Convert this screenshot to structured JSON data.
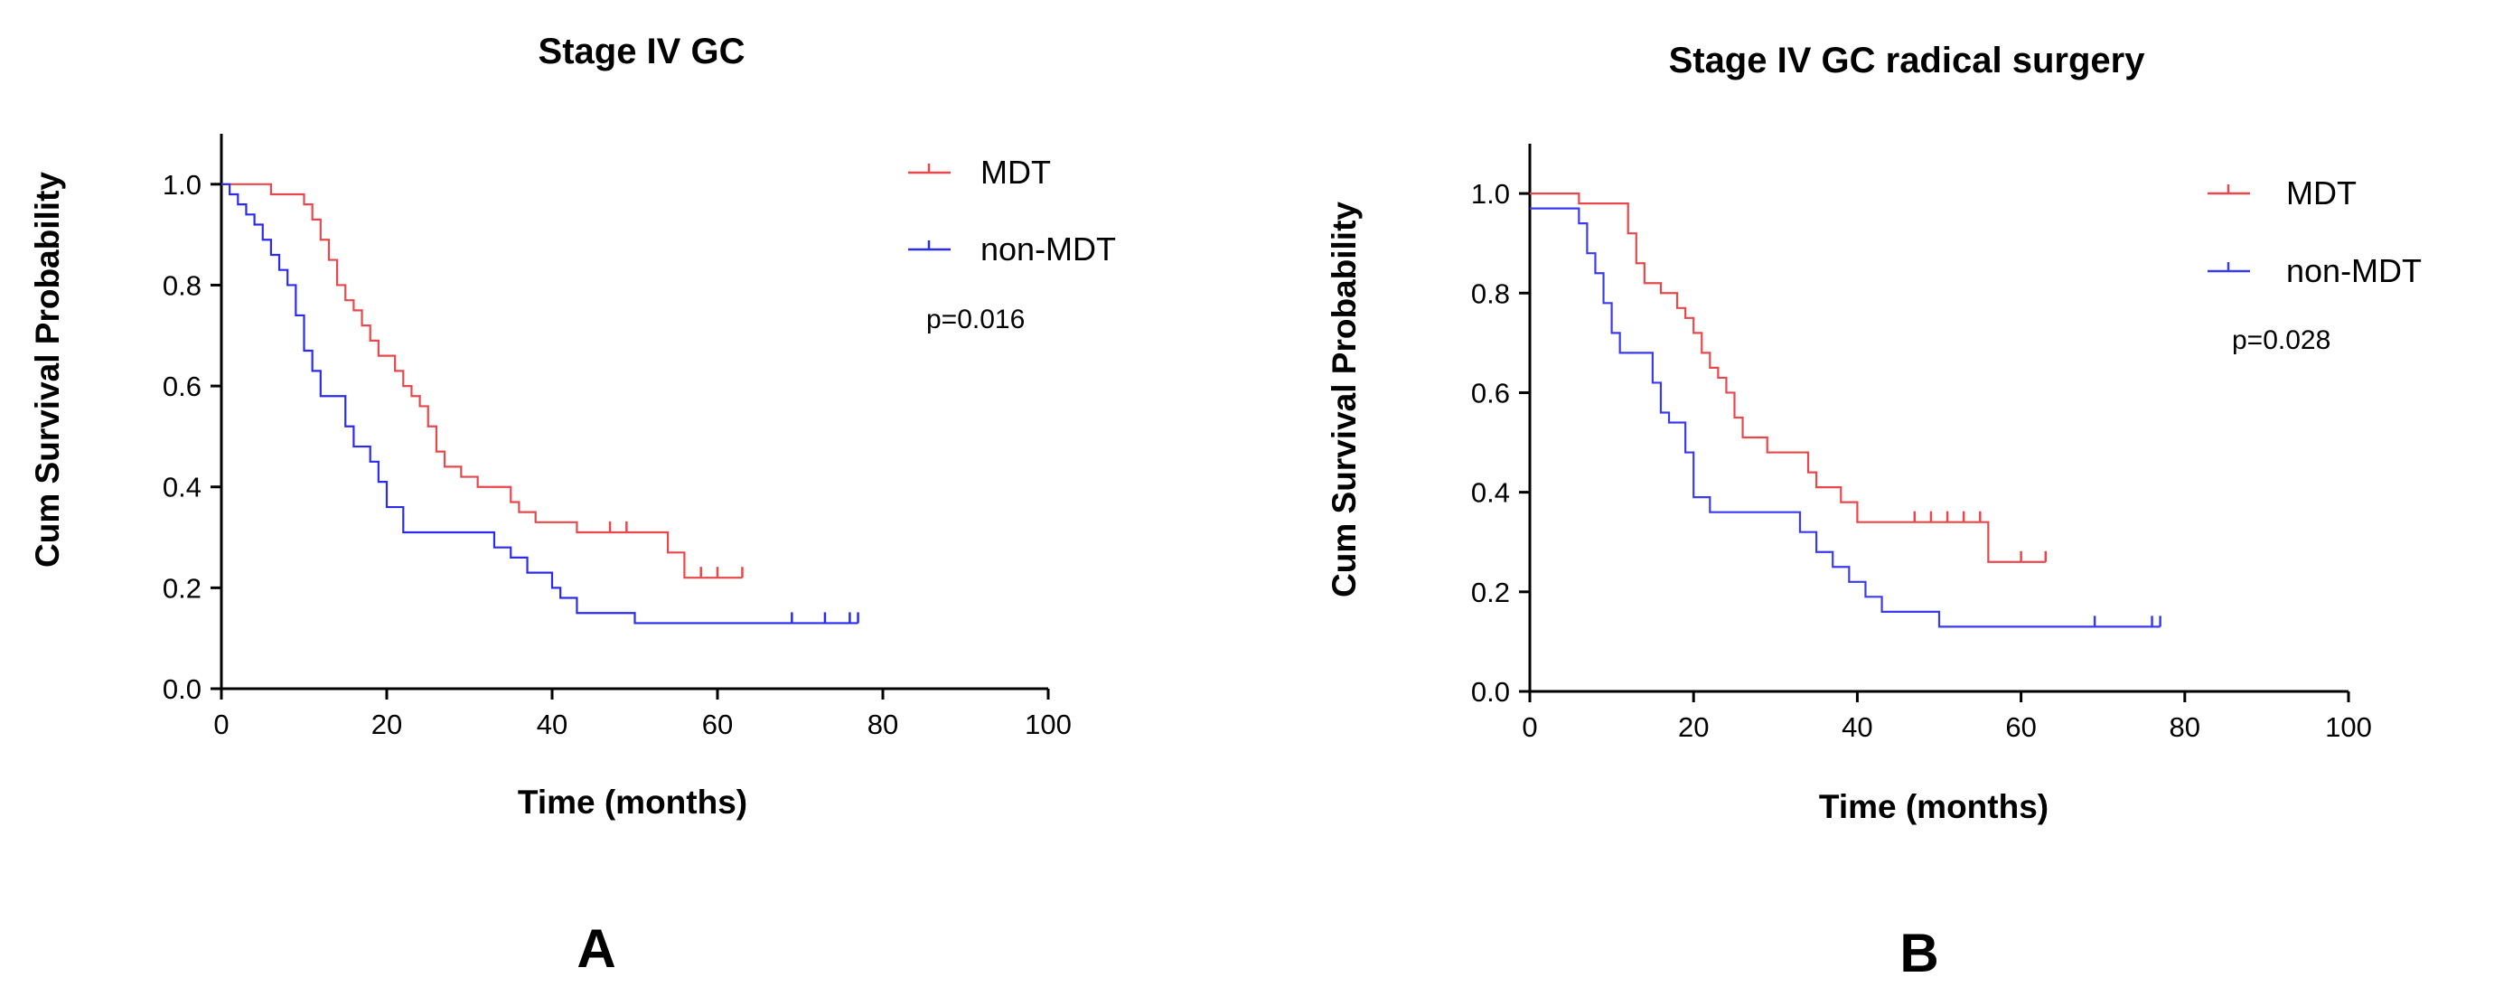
{
  "chart_data": [
    {
      "type": "line",
      "panel_letter": "A",
      "title": "Stage IV GC",
      "xlabel": "Time (months)",
      "ylabel": "Cum Survival Probability",
      "xlim": [
        0,
        100
      ],
      "ylim": [
        0,
        1.1
      ],
      "xticks": [
        "0",
        "20",
        "40",
        "60",
        "80",
        "100"
      ],
      "yticks": [
        "0.0",
        "0.2",
        "0.4",
        "0.6",
        "0.8",
        "1.0"
      ],
      "legend_position": "top-right",
      "p_value": "p=0.016",
      "series": [
        {
          "name": "MDT",
          "color": "#e8474b",
          "steps": [
            [
              0,
              1.0
            ],
            [
              6,
              0.98
            ],
            [
              10,
              0.96
            ],
            [
              11,
              0.93
            ],
            [
              12,
              0.89
            ],
            [
              13,
              0.85
            ],
            [
              14,
              0.8
            ],
            [
              15,
              0.77
            ],
            [
              16,
              0.75
            ],
            [
              17,
              0.72
            ],
            [
              18,
              0.69
            ],
            [
              19,
              0.66
            ],
            [
              21,
              0.63
            ],
            [
              22,
              0.6
            ],
            [
              23,
              0.58
            ],
            [
              24,
              0.56
            ],
            [
              25,
              0.52
            ],
            [
              26,
              0.47
            ],
            [
              27,
              0.44
            ],
            [
              29,
              0.42
            ],
            [
              31,
              0.4
            ],
            [
              35,
              0.37
            ],
            [
              36,
              0.35
            ],
            [
              38,
              0.33
            ],
            [
              43,
              0.31
            ],
            [
              54,
              0.27
            ],
            [
              56,
              0.22
            ]
          ],
          "end": 63,
          "censored": [
            47,
            49,
            58,
            60,
            63
          ]
        },
        {
          "name": "non-MDT",
          "color": "#2b2bf0",
          "steps": [
            [
              0,
              1.0
            ],
            [
              1,
              0.98
            ],
            [
              2,
              0.96
            ],
            [
              3,
              0.94
            ],
            [
              4,
              0.92
            ],
            [
              5,
              0.89
            ],
            [
              6,
              0.86
            ],
            [
              7,
              0.83
            ],
            [
              8,
              0.8
            ],
            [
              9,
              0.74
            ],
            [
              10,
              0.67
            ],
            [
              11,
              0.63
            ],
            [
              12,
              0.58
            ],
            [
              15,
              0.52
            ],
            [
              16,
              0.48
            ],
            [
              18,
              0.45
            ],
            [
              19,
              0.41
            ],
            [
              20,
              0.36
            ],
            [
              22,
              0.31
            ],
            [
              33,
              0.28
            ],
            [
              35,
              0.26
            ],
            [
              37,
              0.23
            ],
            [
              40,
              0.2
            ],
            [
              41,
              0.18
            ],
            [
              43,
              0.15
            ],
            [
              50,
              0.13
            ]
          ],
          "end": 77,
          "censored": [
            69,
            73,
            76,
            77
          ]
        }
      ]
    },
    {
      "type": "line",
      "panel_letter": "B",
      "title": "Stage IV GC radical surgery",
      "xlabel": "Time (months)",
      "ylabel": "Cum Survival Probability",
      "xlim": [
        0,
        100
      ],
      "ylim": [
        0,
        1.1
      ],
      "xticks": [
        "0",
        "20",
        "40",
        "60",
        "80",
        "100"
      ],
      "yticks": [
        "0.0",
        "0.2",
        "0.4",
        "0.6",
        "0.8",
        "1.0"
      ],
      "legend_position": "top-right",
      "p_value": "p=0.028",
      "series": [
        {
          "name": "MDT",
          "color": "#e8474b",
          "steps": [
            [
              0,
              1.0
            ],
            [
              6,
              0.98
            ],
            [
              12,
              0.92
            ],
            [
              13,
              0.86
            ],
            [
              14,
              0.82
            ],
            [
              16,
              0.8
            ],
            [
              18,
              0.77
            ],
            [
              19,
              0.75
            ],
            [
              20,
              0.72
            ],
            [
              21,
              0.68
            ],
            [
              22,
              0.65
            ],
            [
              23,
              0.63
            ],
            [
              24,
              0.6
            ],
            [
              25,
              0.55
            ],
            [
              26,
              0.51
            ],
            [
              29,
              0.48
            ],
            [
              34,
              0.44
            ],
            [
              35,
              0.41
            ],
            [
              38,
              0.38
            ],
            [
              40,
              0.34
            ],
            [
              56,
              0.26
            ]
          ],
          "end": 63,
          "censored": [
            47,
            49,
            51,
            53,
            55,
            60,
            63
          ]
        },
        {
          "name": "non-MDT",
          "color": "#3a3af0",
          "steps": [
            [
              0,
              0.97
            ],
            [
              6,
              0.94
            ],
            [
              7,
              0.88
            ],
            [
              8,
              0.84
            ],
            [
              9,
              0.78
            ],
            [
              10,
              0.72
            ],
            [
              11,
              0.68
            ],
            [
              15,
              0.62
            ],
            [
              16,
              0.56
            ],
            [
              17,
              0.54
            ],
            [
              19,
              0.48
            ],
            [
              20,
              0.39
            ],
            [
              22,
              0.36
            ],
            [
              33,
              0.32
            ],
            [
              35,
              0.28
            ],
            [
              37,
              0.25
            ],
            [
              39,
              0.22
            ],
            [
              41,
              0.19
            ],
            [
              43,
              0.16
            ],
            [
              50,
              0.13
            ]
          ],
          "end": 77,
          "censored": [
            69,
            76,
            77
          ]
        }
      ]
    }
  ]
}
